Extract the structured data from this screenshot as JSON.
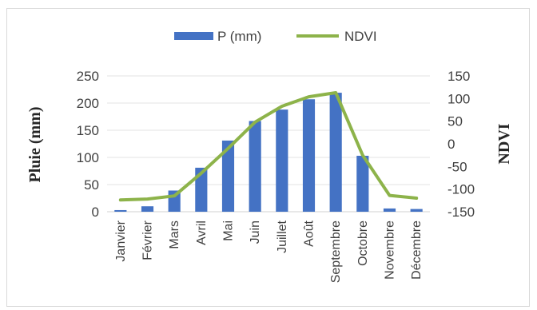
{
  "chart_data": {
    "type": "bar",
    "categories": [
      "Janvier",
      "Février",
      "Mars",
      "Avril",
      "Mai",
      "Juin",
      "Juillet",
      "Août",
      "Septembre",
      "Octobre",
      "Novembre",
      "Décembre"
    ],
    "series": [
      {
        "name": "P (mm)",
        "type": "bar",
        "axis": "left",
        "color": "#4472c4",
        "values": [
          3,
          10,
          39,
          81,
          131,
          167,
          188,
          207,
          219,
          103,
          6,
          5
        ]
      },
      {
        "name": "NDVI",
        "type": "line",
        "axis": "right",
        "color": "#8db34a",
        "values": [
          -124,
          -122,
          -115,
          -65,
          -10,
          48,
          83,
          104,
          113,
          -25,
          -114,
          -120
        ]
      }
    ],
    "ylabel": "Pluie (mm)",
    "y2label": "NDVI",
    "ylim": [
      0,
      250
    ],
    "y2lim": [
      -150,
      150
    ],
    "yticks": [
      "0",
      "50",
      "100",
      "150",
      "200",
      "250"
    ],
    "y2ticks": [
      "-150",
      "-100",
      "-50",
      "0",
      "50",
      "100",
      "150"
    ],
    "grid": true,
    "legend_position": "top"
  }
}
